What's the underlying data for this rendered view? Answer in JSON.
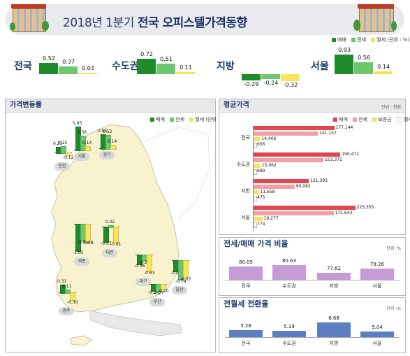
{
  "header": {
    "title_prefix": "2018년 1분기 ",
    "title_bold": "전국 오피스텔가격동향"
  },
  "colors": {
    "sale": "#1f8b2c",
    "jeonse": "#6cc76e",
    "wolse": "#f7e45a",
    "avg_sale": "#e0474f",
    "avg_jeonse": "#f2a0a4",
    "avg_deposit": "#f7e45a",
    "ratio_bar": "#c59bd8",
    "conv_bar": "#5b7fc0",
    "map": "#f8f2cf"
  },
  "legend": {
    "sale": "매매",
    "jeonse": "전세",
    "wolse": "월세",
    "unit_pct": "(단위 : %)",
    "deposit": "보증금"
  },
  "summary": {
    "chart_data": {
      "type": "bar",
      "categories": [
        "전국",
        "수도권",
        "지방",
        "서울"
      ],
      "series": [
        {
          "name": "매매",
          "values": [
            0.52,
            0.72,
            -0.29,
            0.93
          ]
        },
        {
          "name": "전세",
          "values": [
            0.37,
            0.51,
            -0.24,
            0.56
          ]
        },
        {
          "name": "월세",
          "values": [
            0.03,
            0.11,
            -0.32,
            0.14
          ]
        }
      ],
      "labels": [
        [
          "0.52",
          "0.37",
          "0.03"
        ],
        [
          "0.72",
          "0.51",
          "0.11"
        ],
        [
          "-0.29",
          "-0.24",
          "-0.32"
        ],
        [
          "0.93",
          "0.56",
          "0.14"
        ]
      ]
    }
  },
  "map_panel": {
    "title": "가격변동률",
    "chart_data": {
      "type": "bar",
      "series_names": [
        "매매",
        "전세",
        "월세"
      ],
      "cities": [
        {
          "name": "인천",
          "values": [
            0.23,
            0.25,
            -0.12
          ],
          "labels": [
            "0.23",
            "0.25",
            "-0.12"
          ]
        },
        {
          "name": "서울",
          "values": [
            0.93,
            0.56,
            0.14
          ],
          "labels": [
            "0.93",
            "0.56",
            "0.14"
          ]
        },
        {
          "name": "경기",
          "values": [
            0.55,
            0.52,
            0.14
          ],
          "labels": [
            "0.55",
            "0.52",
            "0.14"
          ]
        },
        {
          "name": "세종",
          "values": [
            -1.05,
            -0.64,
            -0.68
          ],
          "labels": [
            "-1.05",
            "-0.64",
            "-0.68"
          ]
        },
        {
          "name": "대전",
          "values": [
            -0.57,
            0.02,
            -0.61
          ],
          "labels": [
            "-0.57",
            "0.02",
            "-0.61"
          ]
        },
        {
          "name": "대구",
          "values": [
            -0.36,
            -0.23,
            -0.63
          ],
          "labels": [
            "-0.36",
            "-0.23",
            "-0.63"
          ]
        },
        {
          "name": "울산",
          "values": [
            -0.43,
            -0.74,
            -0.67
          ],
          "labels": [
            "-0.43",
            "-0.74",
            "-0.67"
          ]
        },
        {
          "name": "광주",
          "values": [
            0.31,
            0.11,
            -0.3
          ],
          "labels": [
            "0.31",
            "0.11",
            "-0.30"
          ]
        },
        {
          "name": "부산",
          "values": [
            -0.24,
            -0.27,
            -0.2
          ],
          "labels": [
            "-0.24",
            "-0.27",
            "-0.20"
          ]
        }
      ]
    }
  },
  "avg_panel": {
    "title": "평균가격",
    "unit": "단위 : 천원",
    "chart_data": {
      "type": "bar",
      "categories": [
        "전국",
        "수도권",
        "지방",
        "서울"
      ],
      "series": [
        {
          "name": "매매",
          "values": [
            177144,
            190471,
            121393,
            223355
          ]
        },
        {
          "name": "전세",
          "values": [
            141157,
            153371,
            90062,
            175643
          ]
        },
        {
          "name": "보증금",
          "values": [
            14406,
            15062,
            11658,
            19277
          ]
        },
        {
          "name": "월세",
          "values": [
            656,
            699,
            475,
            774
          ]
        }
      ],
      "labels": [
        [
          "177,144",
          "141,157",
          "14,406",
          "656"
        ],
        [
          "190,471",
          "153,371",
          "15,062",
          "699"
        ],
        [
          "121,393",
          "90,062",
          "11,658",
          "475"
        ],
        [
          "223,355",
          "175,643",
          "19,277",
          "774"
        ]
      ]
    }
  },
  "ratio_panel": {
    "title": "전세/매매 가격 비율",
    "unit": "단위 :%",
    "chart_data": {
      "type": "bar",
      "categories": [
        "전국",
        "수도권",
        "지방",
        "서울"
      ],
      "values": [
        80.05,
        80.63,
        77.62,
        79.26
      ],
      "labels": [
        "80.05",
        "80.63",
        "77.62",
        "79.26"
      ]
    }
  },
  "conv_panel": {
    "title": "전월세 전환율",
    "unit": "단위 :%",
    "chart_data": {
      "type": "bar",
      "categories": [
        "전국",
        "수도권",
        "지방",
        "서울"
      ],
      "values": [
        5.28,
        5.19,
        6.68,
        5.04
      ],
      "labels": [
        "5.28",
        "5.19",
        "6.68",
        "5.04"
      ]
    }
  }
}
